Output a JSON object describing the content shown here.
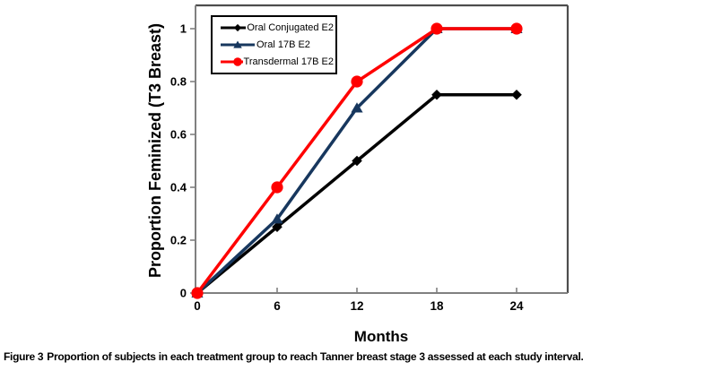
{
  "figure": {
    "caption_label": "Figure 3",
    "caption_text": "Proportion of subjects in each treatment group to reach Tanner breast stage 3 assessed at each study interval."
  },
  "chart_data": {
    "type": "line",
    "title": "",
    "xlabel": "Months",
    "ylabel": "Proportion Feminized (T3 Breast)",
    "x": [
      0,
      6,
      12,
      18,
      24
    ],
    "series": [
      {
        "name": "Oral Conjugated E2",
        "marker": "diamond",
        "color": "#000000",
        "values": [
          0,
          0.25,
          0.5,
          0.75,
          0.75
        ]
      },
      {
        "name": "Oral 17B E2",
        "marker": "triangle",
        "color": "#17375E",
        "values": [
          0,
          0.28,
          0.7,
          1.0,
          1.0
        ]
      },
      {
        "name": "Transdermal 17B E2",
        "marker": "circle",
        "color": "#FF0000",
        "values": [
          0,
          0.4,
          0.8,
          1.0,
          1.0
        ]
      }
    ],
    "xticks": [
      0,
      6,
      12,
      18,
      24
    ],
    "ytick_labels": [
      "0",
      "0.2",
      "0.4",
      "0.6",
      "0.8",
      "1"
    ],
    "yticks": [
      0,
      0.2,
      0.4,
      0.6,
      0.8,
      1
    ],
    "xlim": [
      0,
      27.8
    ],
    "ylim": [
      0,
      1.088
    ],
    "grid": false,
    "legend_position": "top-left",
    "axis_color": "#808080",
    "frame_color": "#4D4D4D",
    "background": "#FFFFFF"
  }
}
